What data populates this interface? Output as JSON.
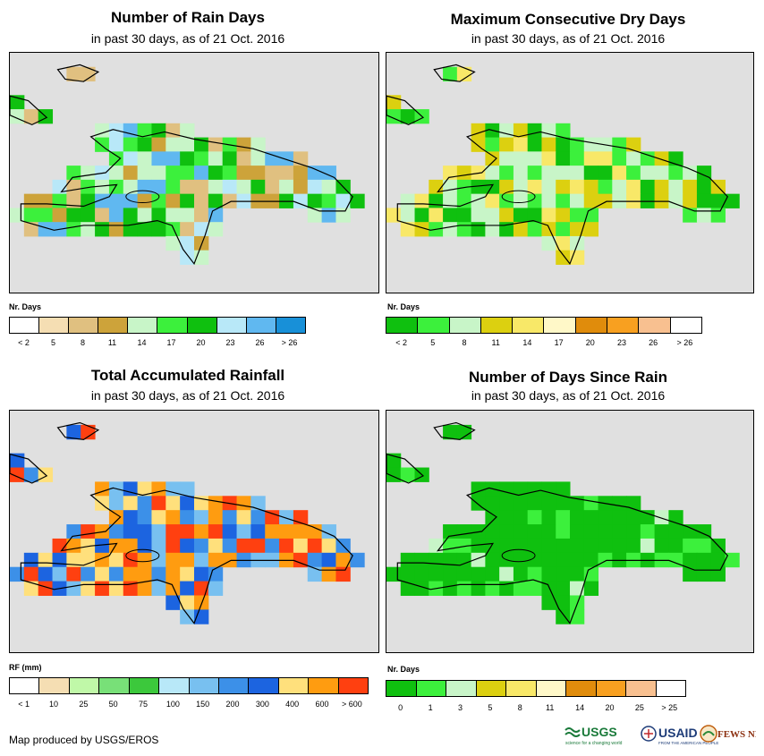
{
  "panels": [
    {
      "title": "Number of Rain Days",
      "subtitle": "in past 30 days, as of 21 Oct. 2016",
      "legend_title": "Nr. Days",
      "legend_colors": [
        "#ffffff",
        "#f5deb3",
        "#e0c080",
        "#cda33a",
        "#c8f5c8",
        "#3cf03c",
        "#0fc00f",
        "#b8e8f8",
        "#60b8f0",
        "#1890d8"
      ],
      "legend_labels": [
        "< 2",
        "5",
        "8",
        "11",
        "14",
        "17",
        "20",
        "23",
        "26",
        "> 26"
      ],
      "grid_palette": [
        "#0fc00f",
        "#3cf03c",
        "#c8f5c8",
        "#b8e8f8",
        "#60b8f0",
        "#cda33a",
        "#e0c080"
      ]
    },
    {
      "title": "Maximum Consecutive Dry Days",
      "subtitle": "in past 30 days, as of 21 Oct. 2016",
      "legend_title": "Nr. Days",
      "legend_colors": [
        "#0fc00f",
        "#3cf03c",
        "#c8f5c8",
        "#dcd010",
        "#f8e868",
        "#fff8c8",
        "#e08c0c",
        "#f8a020",
        "#f8c090",
        "#ffffff"
      ],
      "legend_labels": [
        "< 2",
        "5",
        "8",
        "11",
        "14",
        "17",
        "20",
        "23",
        "26",
        "> 26"
      ],
      "grid_palette": [
        "#3cf03c",
        "#0fc00f",
        "#c8f5c8",
        "#dcd010",
        "#f8e868"
      ]
    },
    {
      "title": "Total Accumulated Rainfall",
      "subtitle": "in past 30 days, as of 21 Oct. 2016",
      "legend_title": "RF (mm)",
      "legend_colors": [
        "#ffffff",
        "#f5deb3",
        "#c0f8a8",
        "#78e078",
        "#3cc83c",
        "#b8e8f8",
        "#78c0f0",
        "#3c90e8",
        "#1c64e0",
        "#ffe07c",
        "#ff9c10",
        "#ff4010"
      ],
      "legend_labels": [
        "< 1",
        "10",
        "25",
        "50",
        "75",
        "100",
        "150",
        "200",
        "300",
        "400",
        "600",
        "> 600"
      ],
      "grid_palette": [
        "#ffe07c",
        "#ff9c10",
        "#1c64e0",
        "#3c90e8",
        "#ff4010",
        "#78c0f0"
      ]
    },
    {
      "title": "Number of Days Since Rain",
      "subtitle": "in past 30 days, as of 21 Oct. 2016",
      "legend_title": "Nr. Days",
      "legend_colors": [
        "#0fc00f",
        "#3cf03c",
        "#c8f5c8",
        "#dcd010",
        "#f8e868",
        "#fff8c8",
        "#e08c0c",
        "#f8a020",
        "#f8c090",
        "#ffffff"
      ],
      "legend_labels": [
        "0",
        "1",
        "3",
        "5",
        "8",
        "11",
        "14",
        "20",
        "25",
        "> 25"
      ],
      "grid_palette": [
        "#0fc00f",
        "#3cf03c",
        "#c8f5c8"
      ]
    }
  ],
  "footer": {
    "credit": "Map produced by USGS/EROS"
  },
  "logos": {
    "usgs": "USGS",
    "usgs_tagline": "science for a changing world",
    "usaid": "USAID",
    "usaid_tagline": "FROM THE AMERICAN PEOPLE",
    "fews": "FEWS NET"
  },
  "colors": {
    "map_background": "#e0e0e0",
    "outline": "#000000"
  }
}
